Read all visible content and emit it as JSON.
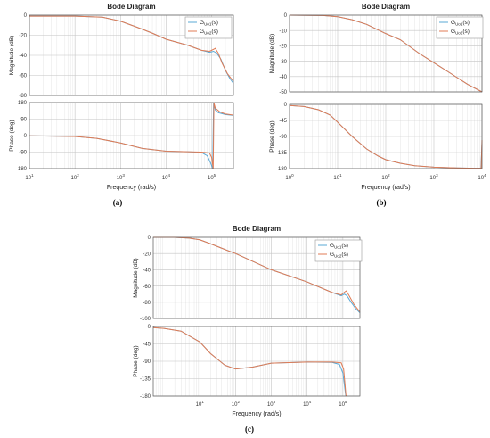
{
  "chart_data": [
    {
      "type": "line",
      "panel_label": "(a)",
      "title": "Bode Diagram",
      "xlabel": "Frequency  (rad/s)",
      "xscale": "log",
      "xlim": [
        10,
        300000
      ],
      "xticks": [
        {
          "v": 10,
          "b": "10",
          "e": "1"
        },
        {
          "v": 100,
          "b": "10",
          "e": "2"
        },
        {
          "v": 1000,
          "b": "10",
          "e": "3"
        },
        {
          "v": 10000,
          "b": "10",
          "e": "4"
        },
        {
          "v": 100000,
          "b": "10",
          "e": "5"
        }
      ],
      "legend": {
        "position": "top-right",
        "entries": [
          {
            "base": "G",
            "sub": "Uo1",
            "suffix": "(s)",
            "color": "#5aa9d6"
          },
          {
            "base": "G",
            "sub": "Uo2",
            "suffix": "(s)",
            "color": "#e07b54"
          }
        ]
      },
      "magnitude": {
        "ylabel": "Magnitude (dB)",
        "ylim": [
          -80,
          0
        ],
        "yticks": [
          0,
          -20,
          -40,
          -60,
          -80
        ],
        "series": [
          {
            "name": "G_Uo1(s)",
            "color": "#5aa9d6",
            "x": [
              10,
              100,
              400,
              1000,
              2000,
              3000,
              5000,
              10000,
              30000,
              60000,
              90000,
              110000,
              130000,
              160000,
              200000,
              250000,
              300000
            ],
            "y": [
              -1,
              -1,
              -2,
              -6,
              -11,
              -14,
              -18,
              -24,
              -30,
              -35,
              -37,
              -36,
              -38,
              -44,
              -55,
              -63,
              -68
            ]
          },
          {
            "name": "G_Uo2(s)",
            "color": "#e07b54",
            "x": [
              10,
              100,
              400,
              1000,
              2000,
              3000,
              5000,
              10000,
              30000,
              60000,
              90000,
              110000,
              120000,
              140000,
              170000,
              220000,
              300000
            ],
            "y": [
              -1,
              -1,
              -2,
              -6,
              -11,
              -14,
              -18,
              -24,
              -30,
              -35,
              -36,
              -34,
              -33,
              -38,
              -48,
              -58,
              -66
            ]
          }
        ]
      },
      "phase": {
        "ylabel": "Phase (deg)",
        "ylim": [
          -180,
          180
        ],
        "yticks": [
          180,
          90,
          0,
          -90,
          -180
        ],
        "series": [
          {
            "name": "G_Uo1(s)",
            "color": "#5aa9d6",
            "x": [
              10,
              100,
              300,
              1000,
              3000,
              10000,
              30000,
              60000,
              80000,
              95000,
              105000,
              110000,
              115000,
              120000,
              140000,
              200000,
              300000
            ],
            "y": [
              -1,
              -5,
              -15,
              -40,
              -70,
              -85,
              -88,
              -92,
              -110,
              -150,
              -180,
              175,
              160,
              140,
              125,
              115,
              110
            ]
          },
          {
            "name": "G_Uo2(s)",
            "color": "#e07b54",
            "x": [
              10,
              100,
              300,
              1000,
              3000,
              10000,
              30000,
              60000,
              90000,
              100000,
              108000,
              112000,
              116000,
              120000,
              150000,
              200000,
              300000
            ],
            "y": [
              -1,
              -5,
              -15,
              -40,
              -70,
              -85,
              -88,
              -90,
              -95,
              -120,
              -180,
              178,
              165,
              150,
              130,
              118,
              112
            ]
          }
        ]
      }
    },
    {
      "type": "line",
      "panel_label": "(b)",
      "title": "Bode Diagram",
      "xlabel": "Frequency  (rad/s)",
      "xscale": "log",
      "xlim": [
        1,
        10000
      ],
      "xticks": [
        {
          "v": 1,
          "b": "10",
          "e": "0"
        },
        {
          "v": 10,
          "b": "10",
          "e": "1"
        },
        {
          "v": 100,
          "b": "10",
          "e": "2"
        },
        {
          "v": 1000,
          "b": "10",
          "e": "3"
        },
        {
          "v": 10000,
          "b": "10",
          "e": "4"
        }
      ],
      "legend": {
        "position": "top-right",
        "entries": [
          {
            "base": "G",
            "sub": "Uo1",
            "suffix": "(s)",
            "color": "#5aa9d6"
          },
          {
            "base": "G",
            "sub": "Uo2",
            "suffix": "(s)",
            "color": "#e07b54"
          }
        ]
      },
      "magnitude": {
        "ylabel": "Magnitude (dB)",
        "ylim": [
          -50,
          0
        ],
        "yticks": [
          0,
          -10,
          -20,
          -30,
          -40,
          -50
        ],
        "series": [
          {
            "name": "G_Uo1(s)",
            "color": "#5aa9d6",
            "x": [
              1,
              5,
              10,
              20,
              40,
              100,
              200,
              500,
              1000,
              2000,
              5000,
              10000
            ],
            "y": [
              0,
              -0.2,
              -1,
              -3,
              -6,
              -12,
              -16,
              -25,
              -31,
              -37,
              -45,
              -50
            ]
          },
          {
            "name": "G_Uo2(s)",
            "color": "#e07b54",
            "x": [
              1,
              5,
              10,
              20,
              40,
              100,
              200,
              500,
              1000,
              2000,
              5000,
              10000
            ],
            "y": [
              0,
              -0.2,
              -1,
              -3,
              -6,
              -12,
              -16,
              -25,
              -31,
              -37,
              -45,
              -50
            ]
          }
        ]
      },
      "phase": {
        "ylabel": "Phase (deg)",
        "ylim": [
          -180,
          0
        ],
        "yticks": [
          0,
          -45,
          -90,
          -135,
          -180
        ],
        "series": [
          {
            "name": "G_Uo1(s)",
            "color": "#5aa9d6",
            "x": [
              1,
              2,
              4,
              7,
              10,
              20,
              40,
              70,
              100,
              200,
              400,
              1000,
              3000,
              7000,
              9500,
              10000
            ],
            "y": [
              -3,
              -6,
              -15,
              -30,
              -50,
              -90,
              -125,
              -145,
              -155,
              -165,
              -172,
              -176,
              -178,
              -179,
              -179,
              -110
            ]
          },
          {
            "name": "G_Uo2(s)",
            "color": "#e07b54",
            "x": [
              1,
              2,
              4,
              7,
              10,
              20,
              40,
              70,
              100,
              200,
              400,
              1000,
              3000,
              7000,
              9600,
              10000
            ],
            "y": [
              -3,
              -6,
              -15,
              -30,
              -50,
              -90,
              -125,
              -145,
              -155,
              -165,
              -172,
              -176,
              -178,
              -179,
              -179,
              -100
            ]
          }
        ]
      }
    },
    {
      "type": "line",
      "panel_label": "(c)",
      "title": "Bode Diagram",
      "xlabel": "Frequency  (rad/s)",
      "xscale": "log",
      "xlim": [
        0.5,
        300000
      ],
      "xticks": [
        {
          "v": 10,
          "b": "10",
          "e": "1"
        },
        {
          "v": 100,
          "b": "10",
          "e": "2"
        },
        {
          "v": 1000,
          "b": "10",
          "e": "3"
        },
        {
          "v": 10000,
          "b": "10",
          "e": "4"
        },
        {
          "v": 100000,
          "b": "10",
          "e": "5"
        }
      ],
      "legend": {
        "position": "top-right",
        "entries": [
          {
            "base": "G",
            "sub": "Uo1",
            "suffix": "(s)",
            "color": "#5aa9d6"
          },
          {
            "base": "G",
            "sub": "Uo2",
            "suffix": "(s)",
            "color": "#e07b54"
          }
        ]
      },
      "magnitude": {
        "ylabel": "Magnitude (dB)",
        "ylim": [
          -100,
          0
        ],
        "yticks": [
          0,
          -20,
          -40,
          -60,
          -80,
          -100
        ],
        "series": [
          {
            "name": "G_Uo1(s)",
            "color": "#5aa9d6",
            "x": [
              0.5,
              2,
              5,
              10,
              20,
              50,
              100,
              1000,
              10000,
              50000,
              90000,
              110000,
              130000,
              170000,
              230000,
              300000
            ],
            "y": [
              0,
              0,
              -1,
              -3,
              -8,
              -15,
              -20,
              -40,
              -55,
              -68,
              -72,
              -70,
              -72,
              -80,
              -88,
              -93
            ]
          },
          {
            "name": "G_Uo2(s)",
            "color": "#e07b54",
            "x": [
              0.5,
              2,
              5,
              10,
              20,
              50,
              100,
              1000,
              10000,
              50000,
              90000,
              115000,
              125000,
              150000,
              200000,
              300000
            ],
            "y": [
              0,
              0,
              -1,
              -3,
              -8,
              -15,
              -20,
              -40,
              -55,
              -68,
              -71,
              -67,
              -66,
              -72,
              -82,
              -92
            ]
          }
        ]
      },
      "phase": {
        "ylabel": "Phase (deg)",
        "ylim": [
          -180,
          0
        ],
        "yticks": [
          0,
          -45,
          -90,
          -135,
          -180
        ],
        "series": [
          {
            "name": "G_Uo1(s)",
            "color": "#5aa9d6",
            "x": [
              0.5,
              1,
              3,
              10,
              20,
              50,
              100,
              300,
              1000,
              10000,
              50000,
              80000,
              100000,
              110000,
              120000,
              125000
            ],
            "y": [
              -3,
              -5,
              -12,
              -40,
              -70,
              -100,
              -110,
              -105,
              -95,
              -92,
              -93,
              -98,
              -120,
              -150,
              -178,
              -180
            ]
          },
          {
            "name": "G_Uo2(s)",
            "color": "#e07b54",
            "x": [
              0.5,
              1,
              3,
              10,
              20,
              50,
              100,
              300,
              1000,
              10000,
              50000,
              90000,
              105000,
              115000,
              122000,
              128000
            ],
            "y": [
              -3,
              -5,
              -12,
              -40,
              -70,
              -100,
              -110,
              -105,
              -95,
              -92,
              -92,
              -94,
              -110,
              -150,
              -178,
              -180
            ]
          }
        ]
      }
    }
  ]
}
